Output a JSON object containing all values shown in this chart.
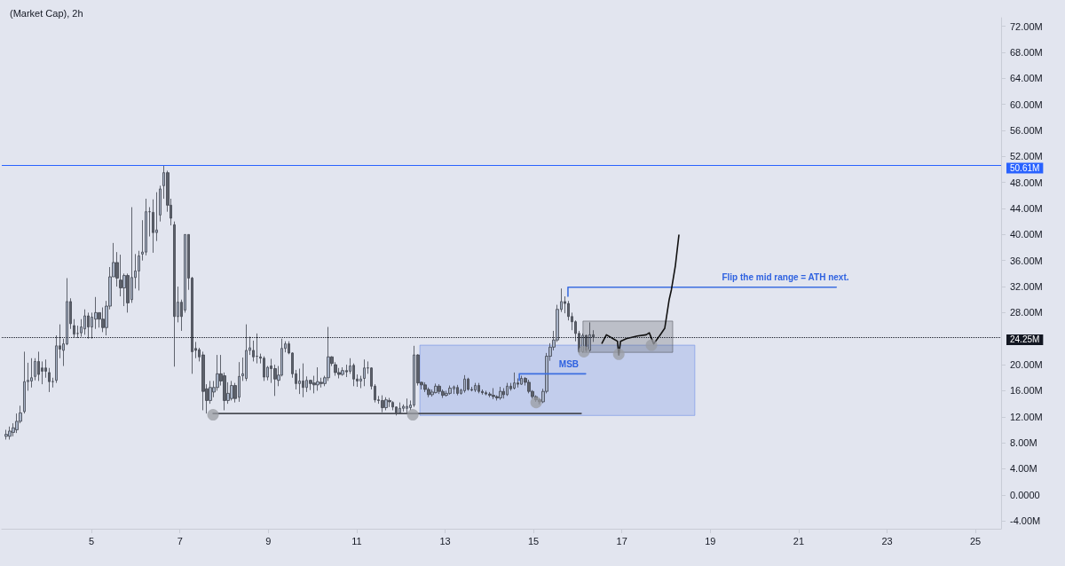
{
  "chart_data": {
    "type": "candlestick",
    "title": "(Market Cap), 2h",
    "x": [
      3.07,
      3.15,
      3.23,
      3.31,
      3.39,
      3.48,
      3.56,
      3.64,
      3.72,
      3.8,
      3.88,
      3.96,
      4.04,
      4.12,
      4.2,
      4.29,
      4.37,
      4.45,
      4.53,
      4.61,
      4.69,
      4.77,
      4.85,
      4.93,
      5.01,
      5.1,
      5.18,
      5.26,
      5.34,
      5.42,
      5.5,
      5.58,
      5.66,
      5.74,
      5.82,
      5.91,
      5.99,
      6.07,
      6.15,
      6.23,
      6.31,
      6.39,
      6.47,
      6.55,
      6.63,
      6.72,
      6.8,
      6.88,
      6.96,
      7.04,
      7.12,
      7.2,
      7.28,
      7.36,
      7.44,
      7.53,
      7.61,
      7.69,
      7.77,
      7.85,
      7.93,
      8.01,
      8.09,
      8.17,
      8.25,
      8.34,
      8.42,
      8.5,
      8.58,
      8.66,
      8.74,
      8.82,
      8.9,
      8.98,
      9.06,
      9.15,
      9.23,
      9.31,
      9.39,
      9.47,
      9.55,
      9.63,
      9.71,
      9.79,
      9.87,
      9.96,
      10.04,
      10.12,
      10.2,
      10.28,
      10.36,
      10.44,
      10.52,
      10.6,
      10.68,
      10.77,
      10.85,
      10.93,
      11.01,
      11.09,
      11.17,
      11.25,
      11.33,
      11.41,
      11.49,
      11.58,
      11.66,
      11.74,
      11.82,
      11.9,
      11.98,
      12.06,
      12.14,
      12.22,
      12.3,
      12.39,
      12.47,
      12.55,
      12.63,
      12.71,
      12.79,
      12.87,
      12.95,
      13.03,
      13.11,
      13.2,
      13.28,
      13.36,
      13.44,
      13.52,
      13.6,
      13.68,
      13.76,
      13.84,
      13.92,
      14.01,
      14.09,
      14.17,
      14.25,
      14.33,
      14.41,
      14.49,
      14.57,
      14.65,
      14.73,
      14.82,
      14.9,
      14.98,
      15.06,
      15.14,
      15.22,
      15.3,
      15.38,
      15.46,
      15.54,
      15.63,
      15.71,
      15.79,
      15.87,
      15.95,
      16.03,
      16.11,
      16.19,
      16.27,
      16.35
    ],
    "ohlc": [
      [
        9,
        10,
        8.5,
        9.3
      ],
      [
        9,
        10.5,
        8.5,
        9.8
      ],
      [
        9.6,
        11,
        9,
        10.3
      ],
      [
        10,
        12.5,
        9.5,
        11.3
      ],
      [
        11.3,
        13.7,
        11,
        12.6
      ],
      [
        12.8,
        22,
        12.5,
        17.4
      ],
      [
        17.4,
        20.3,
        16,
        17.6
      ],
      [
        17.5,
        21,
        16.5,
        18
      ],
      [
        18.2,
        21,
        17.6,
        20.5
      ],
      [
        20.5,
        22,
        17.5,
        18.5
      ],
      [
        19.5,
        20.5,
        17,
        19
      ],
      [
        19.5,
        20.8,
        18,
        19
      ],
      [
        18.8,
        19.5,
        15.8,
        17.4
      ],
      [
        17.4,
        18,
        16.5,
        17.4
      ],
      [
        17.6,
        24.5,
        17.2,
        22.9
      ],
      [
        22.9,
        26.2,
        21,
        22.4
      ],
      [
        22.2,
        24,
        19.8,
        23.2
      ],
      [
        23.2,
        33.3,
        23,
        29.7
      ],
      [
        29.7,
        30.2,
        25.5,
        26.3
      ],
      [
        26,
        27,
        24.2,
        24.7
      ],
      [
        24.8,
        26,
        24.1,
        24.8
      ],
      [
        24.9,
        27,
        24.3,
        25.8
      ],
      [
        25.5,
        28.5,
        24.6,
        27.5
      ],
      [
        27.5,
        28,
        24,
        25.8
      ],
      [
        25.8,
        28,
        24,
        27.3
      ],
      [
        27,
        30.4,
        25.5,
        28
      ],
      [
        28,
        28,
        25.7,
        27
      ],
      [
        27,
        28.8,
        25,
        25.7
      ],
      [
        25.7,
        29.8,
        24.5,
        29
      ],
      [
        29,
        35,
        28.5,
        33.5
      ],
      [
        33.5,
        38.7,
        33.5,
        35.7
      ],
      [
        35.7,
        37.3,
        32,
        33.3
      ],
      [
        33,
        36.9,
        30.5,
        31.8
      ],
      [
        31.8,
        34,
        29,
        33.7
      ],
      [
        33.7,
        34,
        28,
        29.5
      ],
      [
        30,
        44.2,
        29.5,
        33.4
      ],
      [
        33.4,
        37,
        31.7,
        34.4
      ],
      [
        34.4,
        37.5,
        31.4,
        36.7
      ],
      [
        37,
        42.2,
        36,
        37.3
      ],
      [
        37.3,
        45.5,
        36.8,
        43.5
      ],
      [
        43.5,
        44.2,
        39.7,
        43.5
      ],
      [
        43.4,
        45.4,
        37.2,
        40.3
      ],
      [
        40.3,
        46.5,
        39,
        40.7
      ],
      [
        43,
        47.5,
        42,
        47
      ],
      [
        47.5,
        50.61,
        45.5,
        49.5
      ],
      [
        49.5,
        49.8,
        43.5,
        44.5
      ],
      [
        44.5,
        45.5,
        41.4,
        42.5
      ],
      [
        41.5,
        42,
        19.7,
        27.4
      ],
      [
        27.4,
        32,
        26.5,
        29.6
      ],
      [
        29.6,
        30,
        25.2,
        27.4
      ],
      [
        28.4,
        40,
        28,
        40
      ],
      [
        40,
        40,
        31.5,
        33.3
      ],
      [
        33.3,
        33.5,
        18.6,
        22
      ],
      [
        22.5,
        23.5,
        21,
        22.2
      ],
      [
        22.3,
        22.6,
        20.5,
        21.2
      ],
      [
        21.5,
        22,
        13,
        15.9
      ],
      [
        16.3,
        17,
        12.5,
        14.5
      ],
      [
        14.5,
        17.5,
        14,
        16.5
      ],
      [
        15.8,
        17.5,
        15,
        16.5
      ],
      [
        16.5,
        21.5,
        16,
        18.6
      ],
      [
        18.6,
        21.5,
        16.8,
        17.5
      ],
      [
        18.3,
        18.8,
        13,
        14.5
      ],
      [
        14.5,
        17.3,
        14,
        15.6
      ],
      [
        14.8,
        17.5,
        14.5,
        16.8
      ],
      [
        16.8,
        17.2,
        14.2,
        14.8
      ],
      [
        15,
        20.4,
        14.3,
        18.2
      ],
      [
        18.3,
        21.1,
        17.5,
        18.6
      ],
      [
        17.9,
        26.2,
        17.5,
        22.2
      ],
      [
        22.2,
        24.3,
        21.5,
        22.6
      ],
      [
        22.2,
        23.7,
        20.5,
        21.2
      ],
      [
        21.3,
        24.8,
        20.2,
        21.3
      ],
      [
        21.2,
        21.7,
        20.2,
        21
      ],
      [
        21,
        21.3,
        17.5,
        18.1
      ],
      [
        18.1,
        19.8,
        17.6,
        19.6
      ],
      [
        19.8,
        20.9,
        17.2,
        19.4
      ],
      [
        19.4,
        20,
        15.2,
        17.8
      ],
      [
        17.6,
        19.8,
        16.7,
        18.4
      ],
      [
        18.4,
        24,
        18.2,
        22.5
      ],
      [
        22.5,
        23.6,
        21.9,
        23.2
      ],
      [
        23.2,
        23.6,
        21.6,
        21.8
      ],
      [
        21.8,
        21.9,
        18,
        18.6
      ],
      [
        18.6,
        19.2,
        16.2,
        17.1
      ],
      [
        17.1,
        19.4,
        15.5,
        17.5
      ],
      [
        17.5,
        20.2,
        15,
        16.5
      ],
      [
        16.5,
        18.2,
        15.8,
        17.6
      ],
      [
        17.6,
        17.7,
        16.1,
        17.1
      ],
      [
        17.2,
        18.3,
        15.6,
        16.9
      ],
      [
        16.9,
        19.6,
        16,
        17.4
      ],
      [
        17.3,
        18,
        16.5,
        17.1
      ],
      [
        17.1,
        18.3,
        16.7,
        18
      ],
      [
        18,
        25.8,
        17.5,
        21.2
      ],
      [
        21.2,
        21.3,
        19.8,
        20.2
      ],
      [
        20,
        20.4,
        18.3,
        18.8
      ],
      [
        18.8,
        19.5,
        17.9,
        18.5
      ],
      [
        18.5,
        19.6,
        18.3,
        19.1
      ],
      [
        19.1,
        20,
        18.1,
        18.9
      ],
      [
        19,
        21,
        18.6,
        19.8
      ],
      [
        19.9,
        20.2,
        16.7,
        17.8
      ],
      [
        17.8,
        18.5,
        16.6,
        17.5
      ],
      [
        17.5,
        18.3,
        16.4,
        17.8
      ],
      [
        17.9,
        20.8,
        16.7,
        19.5
      ],
      [
        19.5,
        20.5,
        18.6,
        19.5
      ],
      [
        19.5,
        19.6,
        16.2,
        16.7
      ],
      [
        16.7,
        17,
        14.2,
        14.6
      ],
      [
        14.6,
        15.2,
        14,
        14.5
      ],
      [
        14.5,
        15.3,
        12.7,
        13.4
      ],
      [
        13.4,
        15,
        13,
        14.6
      ],
      [
        14.5,
        14.9,
        13.5,
        14.3
      ],
      [
        14.2,
        14.4,
        13,
        13.5
      ],
      [
        13.5,
        13.6,
        12.2,
        12.6
      ],
      [
        12.6,
        14.2,
        12.4,
        13.3
      ],
      [
        13.3,
        13.9,
        12.8,
        13.6
      ],
      [
        13.3,
        14.8,
        12.6,
        13.6
      ],
      [
        13.4,
        14.5,
        13,
        13.8
      ],
      [
        13.8,
        22.9,
        13.5,
        21.5
      ],
      [
        21.5,
        21.6,
        16.8,
        17.2
      ],
      [
        17.3,
        17.4,
        16.2,
        16.9
      ],
      [
        16.9,
        17.3,
        15.8,
        16.2
      ],
      [
        16.2,
        16.5,
        15,
        15.4
      ],
      [
        15.4,
        16.2,
        15.1,
        15.8
      ],
      [
        15.7,
        17.1,
        15.6,
        16.7
      ],
      [
        16.7,
        17,
        15.5,
        15.9
      ],
      [
        15.9,
        16.2,
        14.9,
        15.3
      ],
      [
        15.3,
        16,
        15.1,
        15.6
      ],
      [
        15.6,
        16.8,
        15.4,
        16.4
      ],
      [
        16.3,
        16.8,
        15.5,
        16.6
      ],
      [
        16.5,
        16.9,
        15.3,
        15.6
      ],
      [
        15.6,
        16.3,
        15.4,
        16.1
      ],
      [
        16,
        18.4,
        15.7,
        17.8
      ],
      [
        17.8,
        18,
        16,
        16.2
      ],
      [
        16.2,
        16.6,
        15.9,
        16.1
      ],
      [
        16.1,
        17.2,
        15.8,
        16.8
      ],
      [
        16.8,
        17.2,
        15.6,
        15.9
      ],
      [
        15.9,
        16.2,
        15.4,
        15.7
      ],
      [
        15.7,
        16,
        15.3,
        15.5
      ],
      [
        15.5,
        15.8,
        15,
        15.3
      ],
      [
        15.3,
        16.4,
        14.7,
        15.1
      ],
      [
        15.1,
        15.3,
        14.5,
        14.9
      ],
      [
        14.9,
        16.6,
        14.6,
        15.9
      ],
      [
        15.9,
        16.4,
        14.8,
        15.4
      ],
      [
        15.4,
        17.2,
        15.2,
        16.7
      ],
      [
        16.7,
        17.2,
        16,
        16.3
      ],
      [
        16.4,
        18.8,
        16.2,
        17.2
      ],
      [
        17.2,
        17.9,
        16.5,
        17
      ],
      [
        17,
        18.3,
        16.9,
        17.9
      ],
      [
        17.9,
        18.1,
        16.8,
        17.3
      ],
      [
        17.3,
        17.7,
        15.6,
        15.9
      ],
      [
        15.9,
        16.1,
        14.8,
        15.1
      ],
      [
        15.1,
        15.3,
        14.3,
        14.6
      ],
      [
        14.6,
        14.8,
        13.9,
        14.3
      ],
      [
        14.3,
        16.3,
        14.1,
        15.9
      ],
      [
        15.9,
        21.8,
        15.6,
        21.3
      ],
      [
        21.3,
        23.3,
        20.6,
        22.7
      ],
      [
        22.7,
        25.2,
        22.2,
        23.8
      ],
      [
        23.8,
        29.2,
        23.5,
        28.5
      ],
      [
        28.5,
        31.7,
        28.1,
        29.7
      ],
      [
        29.7,
        30.5,
        27.9,
        29.4
      ],
      [
        29.4,
        29.8,
        26.8,
        27.4
      ],
      [
        27.4,
        28,
        25.3,
        26.6
      ],
      [
        26.6,
        26.8,
        23.6,
        24.8
      ],
      [
        24.8,
        25.2,
        21.8,
        22
      ],
      [
        22,
        24.8,
        21.8,
        24.5
      ],
      [
        24.5,
        24.6,
        21.9,
        22.2
      ],
      [
        22.2,
        26.5,
        22,
        24.6
      ],
      [
        24.6,
        25.3,
        23.5,
        24.25
      ]
    ],
    "series": [
      {
        "type": "area",
        "color": "#6f8fe6",
        "x": [
          12.43,
          18.65,
          18.65,
          12.43,
          12.43
        ],
        "values": [
          23,
          23,
          12.2,
          12.2,
          23
        ]
      },
      {
        "type": "area",
        "color": "#5a5d66",
        "x": [
          16.12,
          18.15,
          18.15,
          16.12,
          16.12
        ],
        "values": [
          26.7,
          26.7,
          21.9,
          21.9,
          26.7
        ]
      },
      {
        "type": "line",
        "color": "#4a4d55",
        "x": [
          7.75,
          16.08
        ],
        "values": [
          12.5,
          12.5
        ]
      },
      {
        "type": "line",
        "color": "#3d6fe0",
        "x": [
          14.68,
          14.68,
          16.18
        ],
        "values": [
          17.6,
          18.6,
          18.6
        ]
      },
      {
        "type": "line",
        "color": "#3d6fe0",
        "x": [
          15.78,
          15.78,
          21.85
        ],
        "values": [
          30.5,
          31.9,
          31.9
        ]
      },
      {
        "type": "line",
        "color": "#111111",
        "x": [
          16.55,
          16.65,
          16.8,
          16.9,
          16.93,
          16.97,
          17.1,
          17.35,
          17.55,
          17.62,
          17.72,
          17.85,
          17.97,
          18.07,
          18.12,
          18.21,
          18.29
        ],
        "values": [
          23.3,
          24.6,
          24.0,
          23.6,
          21.5,
          23.6,
          24.0,
          24.4,
          24.6,
          24.9,
          23.2,
          24.4,
          25.6,
          30.0,
          31.5,
          35.2,
          39.9
        ]
      },
      {
        "type": "scatter",
        "color": "#9a9ca3",
        "marker": "circle",
        "x": [
          7.75,
          12.27,
          15.06,
          16.14,
          16.93,
          17.67
        ],
        "values": [
          12.3,
          12.3,
          14.2,
          22.0,
          21.6,
          23.0
        ]
      }
    ],
    "ref_lines": [
      {
        "axis": "y",
        "value": 50.61,
        "label": "50.61M",
        "color": "#2962ff"
      },
      {
        "axis": "y",
        "value": 24.25,
        "label": "24.25M",
        "color": "#131722",
        "line_style": "dotted"
      }
    ],
    "annotations": [
      {
        "text": "MSB",
        "x": 15.8,
        "y": 18.6
      },
      {
        "text": "Flip the mid range = ATH next.",
        "x": 20.7,
        "y": 31.9
      }
    ],
    "xlim": [
      2.97,
      25.58
    ],
    "xticks": [
      5,
      7,
      9,
      11,
      13,
      15,
      17,
      19,
      21,
      23,
      25
    ],
    "ylim": [
      -5.2,
      73.3
    ],
    "yticks": [
      {
        "value": -4,
        "label": "-4.00M"
      },
      {
        "value": 0,
        "label": "0.0000"
      },
      {
        "value": 4,
        "label": "4.00M"
      },
      {
        "value": 8,
        "label": "8.00M"
      },
      {
        "value": 12,
        "label": "12.00M"
      },
      {
        "value": 16,
        "label": "16.00M"
      },
      {
        "value": 20,
        "label": "20.00M"
      },
      {
        "value": 28,
        "label": "28.00M"
      },
      {
        "value": 32,
        "label": "32.00M"
      },
      {
        "value": 36,
        "label": "36.00M"
      },
      {
        "value": 40,
        "label": "40.00M"
      },
      {
        "value": 44,
        "label": "44.00M"
      },
      {
        "value": 48,
        "label": "48.00M"
      },
      {
        "value": 52,
        "label": "52.00M"
      },
      {
        "value": 56,
        "label": "56.00M"
      },
      {
        "value": 60,
        "label": "60.00M"
      },
      {
        "value": 64,
        "label": "64.00M"
      },
      {
        "value": 68,
        "label": "68.00M"
      },
      {
        "value": 72,
        "label": "72.00M"
      }
    ],
    "grid": false
  }
}
